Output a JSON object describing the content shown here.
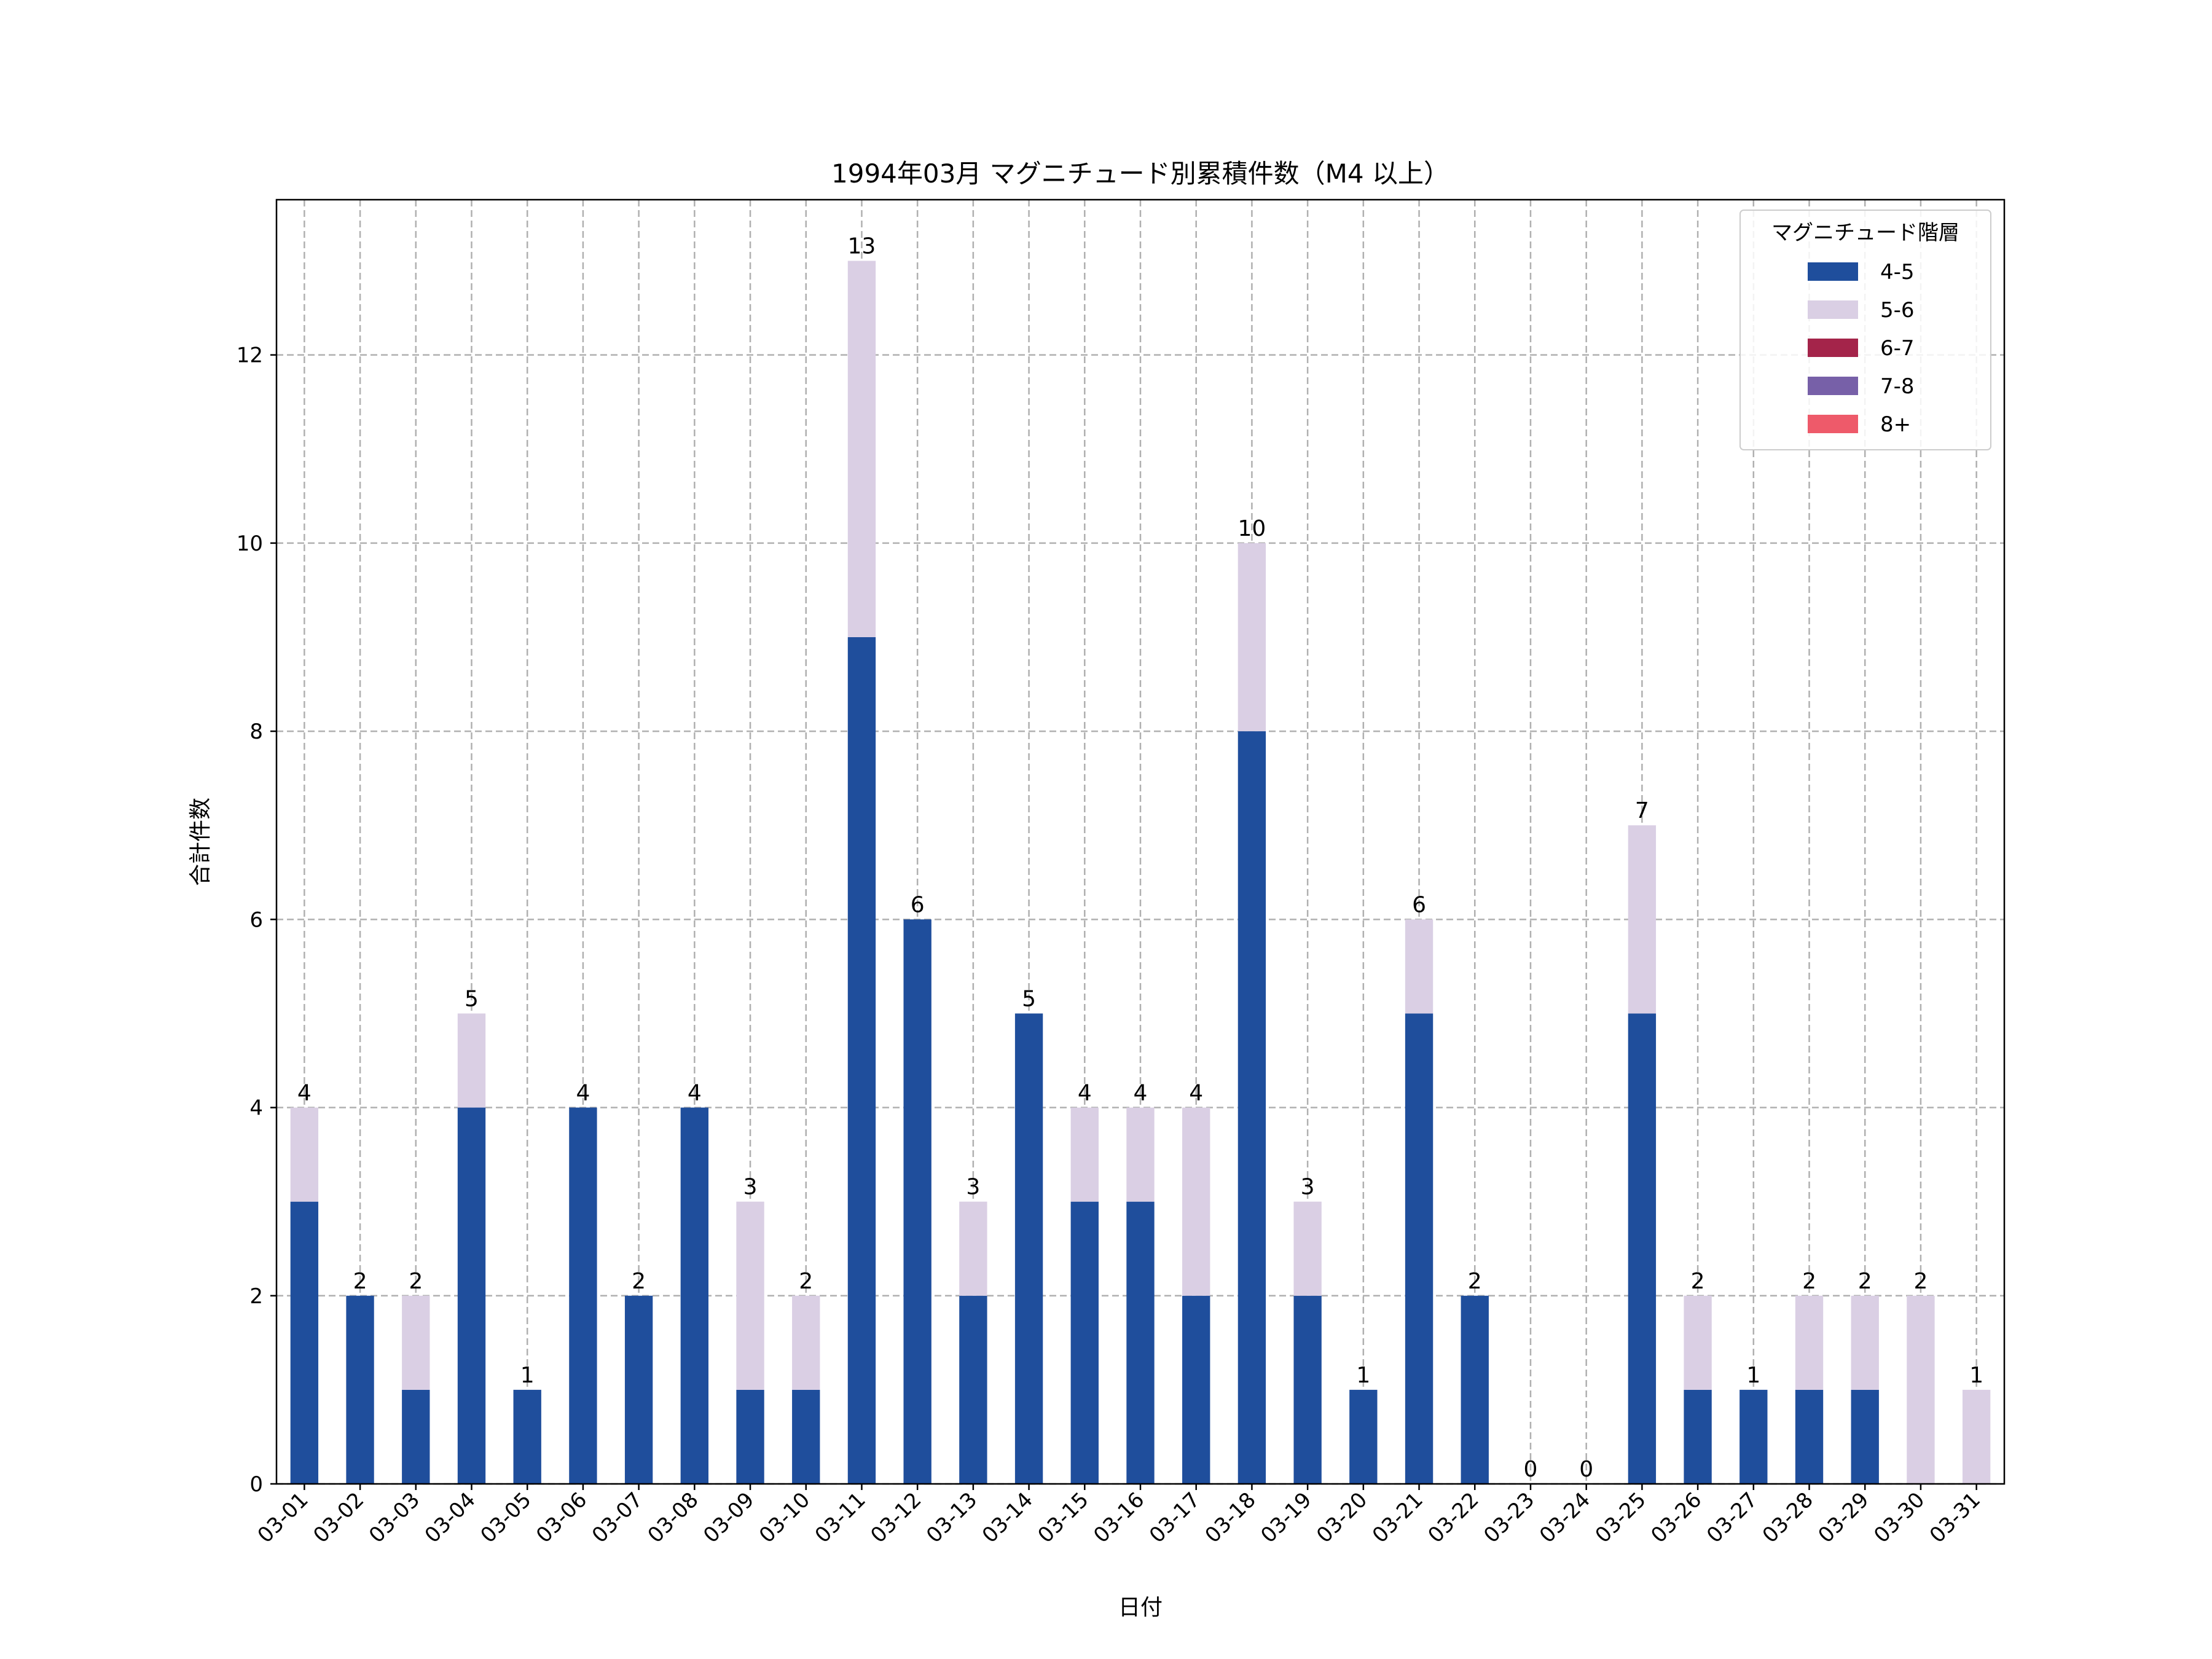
{
  "chart_data": {
    "type": "bar",
    "stacked": true,
    "title": "1994年03月 マグニチュード別累積件数（M4 以上）",
    "xlabel": "日付",
    "ylabel": "合計件数",
    "ylim": [
      0,
      13.65
    ],
    "yticks": [
      0,
      2,
      4,
      6,
      8,
      10,
      12
    ],
    "grid": true,
    "legend_title": "マグニチュード階層",
    "legend_position": "top-right",
    "categories": [
      "03-01",
      "03-02",
      "03-03",
      "03-04",
      "03-05",
      "03-06",
      "03-07",
      "03-08",
      "03-09",
      "03-10",
      "03-11",
      "03-12",
      "03-13",
      "03-14",
      "03-15",
      "03-16",
      "03-17",
      "03-18",
      "03-19",
      "03-20",
      "03-21",
      "03-22",
      "03-23",
      "03-24",
      "03-25",
      "03-26",
      "03-27",
      "03-28",
      "03-29",
      "03-30",
      "03-31"
    ],
    "series": [
      {
        "name": "4-5",
        "color": "#1f4e9c",
        "values": [
          3,
          2,
          1,
          4,
          1,
          4,
          2,
          4,
          1,
          1,
          9,
          6,
          2,
          5,
          3,
          3,
          2,
          8,
          2,
          1,
          5,
          2,
          0,
          0,
          5,
          1,
          1,
          1,
          1,
          0,
          0
        ]
      },
      {
        "name": "5-6",
        "color": "#dacfe4",
        "values": [
          1,
          0,
          1,
          1,
          0,
          0,
          0,
          0,
          2,
          1,
          4,
          0,
          1,
          0,
          1,
          1,
          2,
          2,
          1,
          0,
          1,
          0,
          0,
          0,
          2,
          1,
          0,
          1,
          1,
          2,
          1
        ]
      },
      {
        "name": "6-7",
        "color": "#a4244a",
        "values": [
          0,
          0,
          0,
          0,
          0,
          0,
          0,
          0,
          0,
          0,
          0,
          0,
          0,
          0,
          0,
          0,
          0,
          0,
          0,
          0,
          0,
          0,
          0,
          0,
          0,
          0,
          0,
          0,
          0,
          0,
          0
        ]
      },
      {
        "name": "7-8",
        "color": "#7760a8",
        "values": [
          0,
          0,
          0,
          0,
          0,
          0,
          0,
          0,
          0,
          0,
          0,
          0,
          0,
          0,
          0,
          0,
          0,
          0,
          0,
          0,
          0,
          0,
          0,
          0,
          0,
          0,
          0,
          0,
          0,
          0,
          0
        ]
      },
      {
        "name": "8+",
        "color": "#ee5a6a",
        "values": [
          0,
          0,
          0,
          0,
          0,
          0,
          0,
          0,
          0,
          0,
          0,
          0,
          0,
          0,
          0,
          0,
          0,
          0,
          0,
          0,
          0,
          0,
          0,
          0,
          0,
          0,
          0,
          0,
          0,
          0,
          0
        ]
      }
    ],
    "totals": [
      4,
      2,
      2,
      5,
      1,
      4,
      2,
      4,
      3,
      2,
      13,
      6,
      3,
      5,
      4,
      4,
      4,
      10,
      3,
      1,
      6,
      2,
      0,
      0,
      7,
      2,
      1,
      2,
      2,
      2,
      1
    ]
  }
}
